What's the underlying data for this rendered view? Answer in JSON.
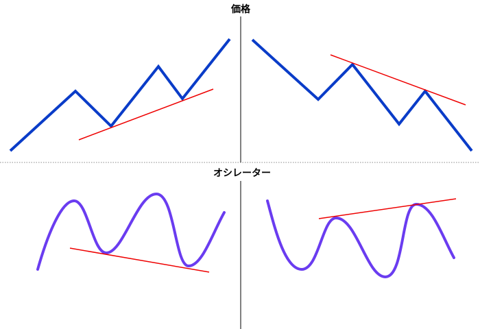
{
  "top_label": "価格",
  "bottom_label": "オシレーター"
}
